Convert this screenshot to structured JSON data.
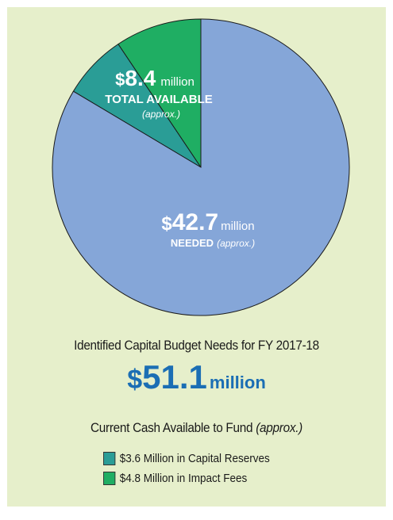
{
  "chart_data": {
    "type": "pie",
    "slices": [
      {
        "label": "Capital Reserves",
        "value": 3.6,
        "color": "#2a9d96"
      },
      {
        "label": "Impact Fees",
        "value": 4.8,
        "color": "#1fae63"
      },
      {
        "label": "Needed",
        "value": 42.7,
        "color": "#85a6d8"
      }
    ]
  },
  "labels": {
    "available_currency": "$",
    "available_value": "8.4",
    "available_unit": "million",
    "available_caption": "TOTAL AVAILABLE",
    "available_note": "(approx.)",
    "needed_currency": "$",
    "needed_value": "42.7",
    "needed_unit": "million",
    "needed_caption": "NEEDED",
    "needed_note": "(approx.)"
  },
  "heading": "Identified Capital  Budget Needs for FY 2017-18",
  "total": {
    "currency": "$",
    "value": "51.1",
    "unit": "million"
  },
  "subheading": {
    "text": "Current Cash Available to Fund ",
    "note": "(approx.)"
  },
  "legend": [
    {
      "label": "$3.6 Million in Capital Reserves",
      "color": "#2a9d96"
    },
    {
      "label": "$4.8 Million in Impact Fees",
      "color": "#1fae63"
    }
  ],
  "colors": {
    "background": "#e6efcb",
    "accent": "#1b6eb4"
  }
}
